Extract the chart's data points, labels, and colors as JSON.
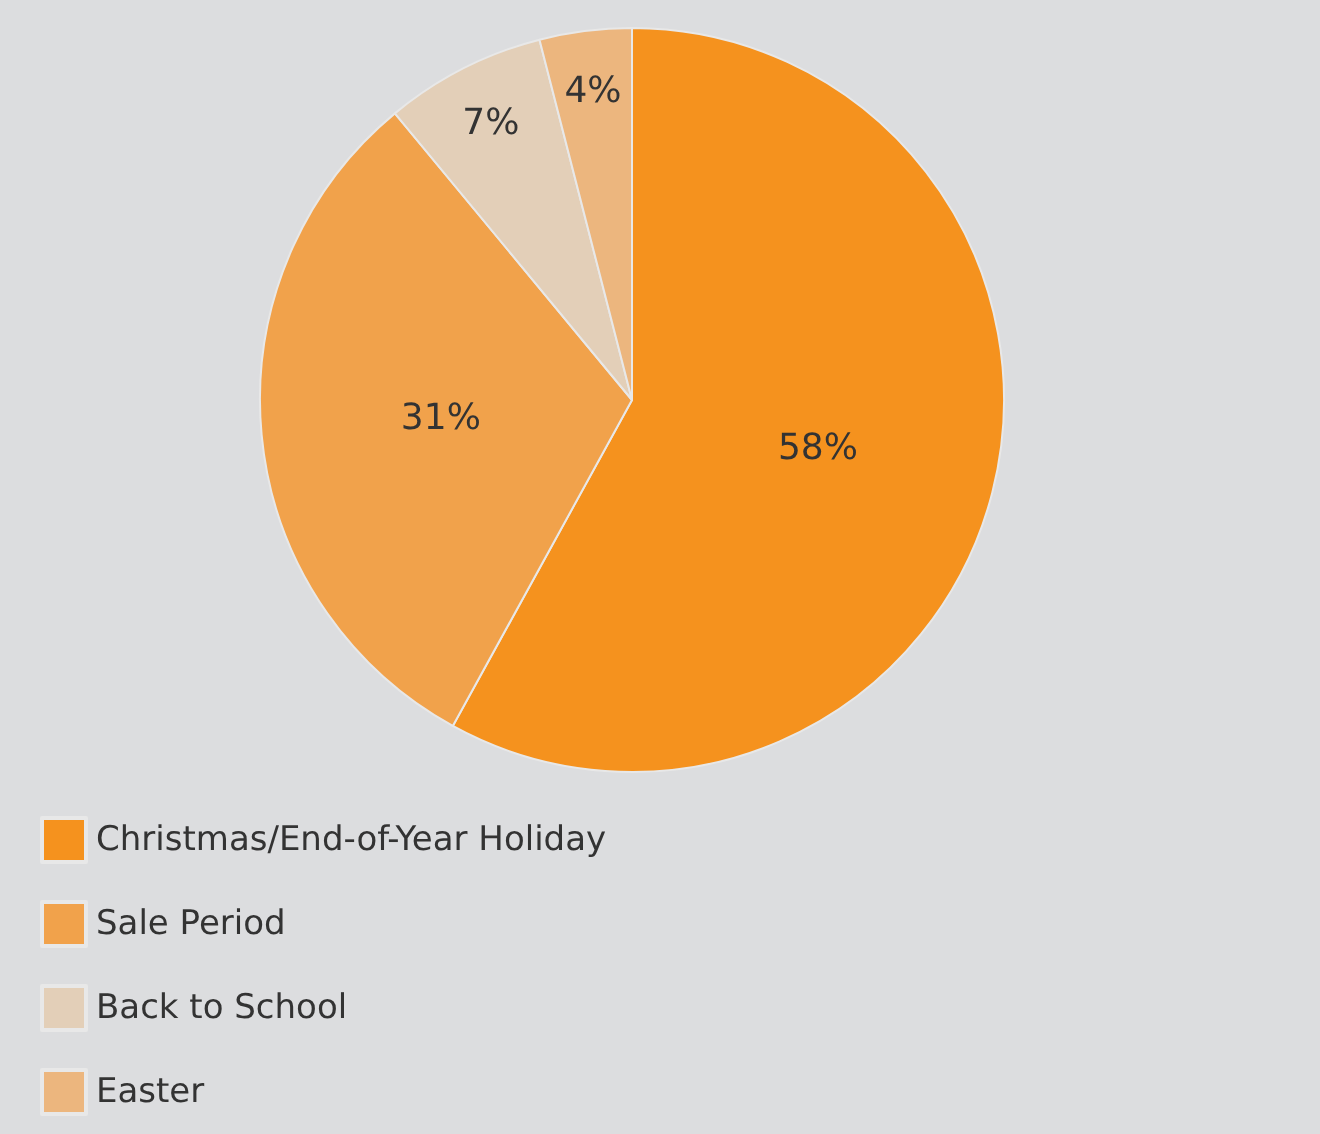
{
  "chart_data": {
    "type": "pie",
    "categories": [
      "Christmas/End-of-Year Holiday",
      "Sale Period",
      "Back to School",
      "Easter"
    ],
    "values": [
      58,
      31,
      7,
      4
    ],
    "colors": [
      "#f5921e",
      "#f1a24b",
      "#e3cfb8",
      "#ecb67e"
    ],
    "value_labels": [
      "58%",
      "31%",
      "7%",
      "4%"
    ],
    "legend": "bottom left"
  }
}
